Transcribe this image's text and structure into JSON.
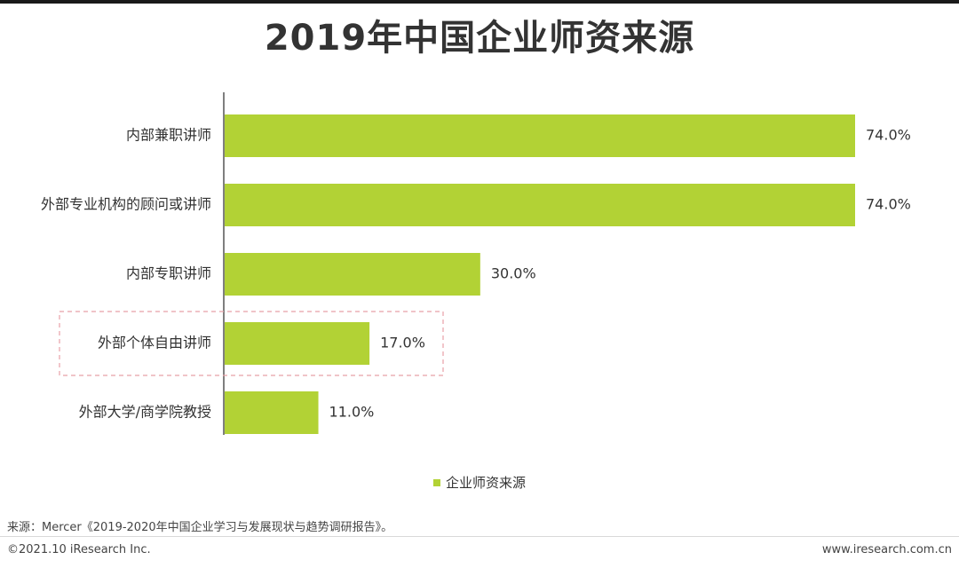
{
  "title": "2019年中国企业师资来源",
  "chart_data": {
    "type": "bar",
    "orientation": "horizontal",
    "categories": [
      "内部兼职讲师",
      "外部专业机构的顾问或讲师",
      "内部专职讲师",
      "外部个体自由讲师",
      "外部大学/商学院教授"
    ],
    "series": [
      {
        "name": "企业师资来源",
        "values": [
          74.0,
          74.0,
          30.0,
          17.0,
          11.0
        ]
      }
    ],
    "value_labels": [
      "74.0%",
      "74.0%",
      "30.0%",
      "17.0%",
      "11.0%"
    ],
    "unit": "%",
    "xlim": [
      0,
      80
    ],
    "grid": false,
    "legend_position": "bottom",
    "highlighted_category": "外部个体自由讲师",
    "colors": {
      "bar": "#b2d235",
      "axis": "#555555",
      "highlight_box": "#e8a1a8"
    }
  },
  "legend": {
    "label": "企业师资来源"
  },
  "footer": {
    "source": "来源：Mercer《2019-2020年中国企业学习与发展现状与趋势调研报告》。",
    "copyright": "©2021.10 iResearch Inc.",
    "website": "www.iresearch.com.cn"
  }
}
